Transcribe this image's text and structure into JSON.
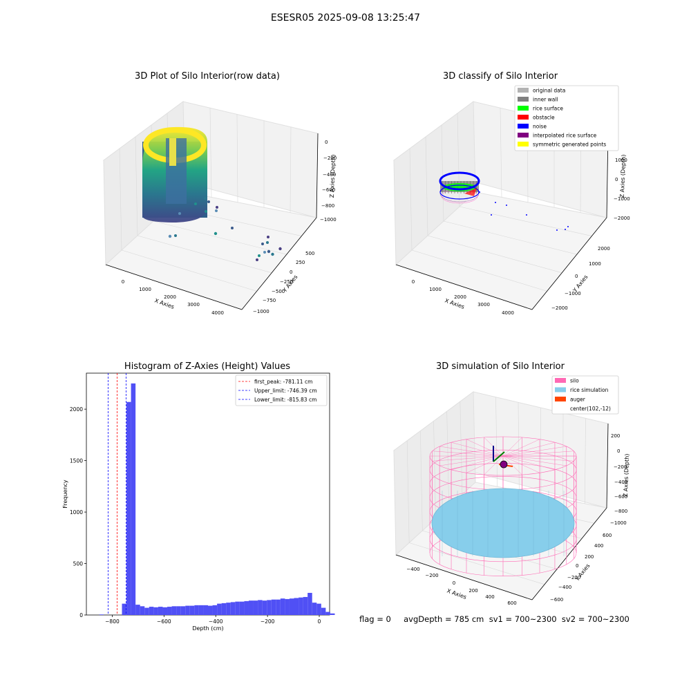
{
  "figure": {
    "title": "ESESR05 2025-09-08 13:25:47"
  },
  "status_line": "flag = 0     avgDepth = 785 cm  sv1 = 700~2300  sv2 = 700~2300",
  "chart_data": [
    {
      "type": "scatter",
      "title": "3D Plot of Silo Interior(row data)",
      "xlabel": "X Axies",
      "ylabel": "Y Axies",
      "zlabel": "Z Axies (Depth)",
      "x_ticks": [
        "0",
        "1000",
        "2000",
        "3000",
        "4000"
      ],
      "y_ticks": [
        "500",
        "250",
        "0",
        "−250",
        "−500",
        "−750",
        "−1000"
      ],
      "z_ticks": [
        "0",
        "−200",
        "−400",
        "−600",
        "−800",
        "−1000"
      ],
      "colormap": "viridis",
      "outlier_points": [
        {
          "x": 3900,
          "y": -400,
          "z": -1000
        },
        {
          "x": 3800,
          "y": -500,
          "z": -900
        },
        {
          "x": 4100,
          "y": -600,
          "z": -800
        },
        {
          "x": 2400,
          "y": 200,
          "z": -700
        },
        {
          "x": 1200,
          "y": -300,
          "z": -600
        }
      ]
    },
    {
      "type": "scatter",
      "title": "3D classify of Silo Interior",
      "xlabel": "X Axies",
      "ylabel": "Y Axies",
      "zlabel": "Z Axies (Depth)",
      "x_ticks": [
        "0",
        "1000",
        "2000",
        "3000",
        "4000"
      ],
      "y_ticks": [
        "2000",
        "1000",
        "0",
        "−1000",
        "−2000"
      ],
      "z_ticks": [
        "1000",
        "0",
        "−1000",
        "−2000"
      ],
      "legend_position": "top-right",
      "legend": [
        {
          "label": "original data",
          "color": "#b3b3b3"
        },
        {
          "label": "inner wall",
          "color": "#808080"
        },
        {
          "label": "rice surface",
          "color": "#00ff00"
        },
        {
          "label": "obstacle",
          "color": "#ff0000"
        },
        {
          "label": "noise",
          "color": "#0000ff"
        },
        {
          "label": "interpolated rice surface",
          "color": "#800080"
        },
        {
          "label": "symmetric generated points",
          "color": "#ffff00"
        }
      ]
    },
    {
      "type": "bar",
      "title": "Histogram of Z-Axies (Height) Values",
      "xlabel": "Depth (cm)",
      "ylabel": "Frequency",
      "xlim": [
        -900,
        40
      ],
      "ylim": [
        0,
        2350
      ],
      "x_ticks": [
        -800,
        -600,
        -400,
        -200,
        0
      ],
      "y_ticks": [
        0,
        500,
        1000,
        1500,
        2000
      ],
      "bar_color": "#5050f5",
      "bin_start": -850,
      "bin_width": 17.5,
      "values": [
        5,
        0,
        0,
        0,
        0,
        110,
        2070,
        2250,
        100,
        85,
        70,
        80,
        75,
        80,
        75,
        80,
        85,
        85,
        85,
        90,
        90,
        95,
        95,
        95,
        90,
        95,
        110,
        115,
        120,
        125,
        130,
        130,
        135,
        140,
        140,
        145,
        140,
        145,
        150,
        150,
        160,
        155,
        160,
        165,
        170,
        175,
        215,
        120,
        110,
        70,
        30,
        15
      ],
      "lines": [
        {
          "label": "first_peak: -781.11 cm",
          "value": -781.11,
          "color": "#ff0000"
        },
        {
          "label": "Upper_limit: -746.39 cm",
          "value": -746.39,
          "color": "#0000ff"
        },
        {
          "label": "Lower_limit: -815.83 cm",
          "value": -815.83,
          "color": "#0000ff"
        }
      ],
      "legend_position": "top-right"
    },
    {
      "type": "scatter",
      "title": "3D simulation of Silo Interior",
      "xlabel": "X Axies",
      "ylabel": "Y Axies",
      "zlabel": "Z Axies (Depth)",
      "x_ticks": [
        "−400",
        "−200",
        "0",
        "200",
        "400",
        "600"
      ],
      "y_ticks": [
        "600",
        "400",
        "200",
        "0",
        "−200",
        "−400",
        "−600"
      ],
      "z_ticks": [
        "200",
        "0",
        "−200",
        "−400",
        "−600",
        "−800",
        "−1000"
      ],
      "legend_position": "top-right",
      "legend": [
        {
          "label": "silo",
          "color": "#ff69b4"
        },
        {
          "label": "rice simulation",
          "color": "#87ceeb"
        },
        {
          "label": "auger",
          "color": "#ff4500"
        },
        {
          "label": "center(102,-12)",
          "color": ""
        }
      ]
    }
  ]
}
